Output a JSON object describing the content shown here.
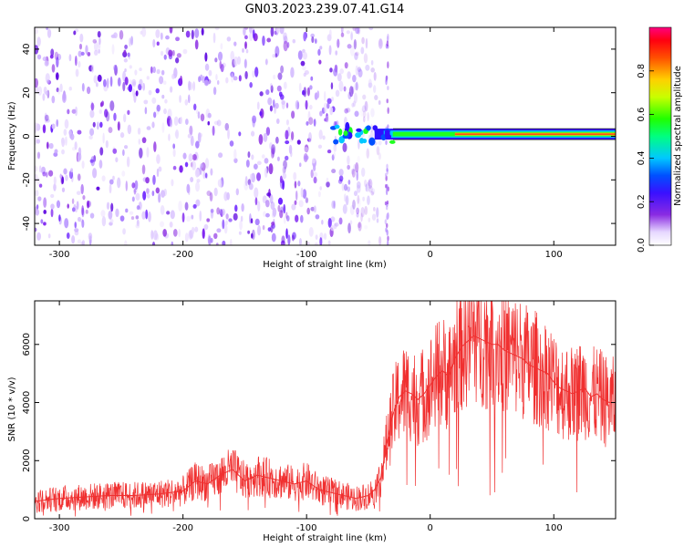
{
  "chart_data": [
    {
      "type": "heatmap",
      "title": "GN03.2023.239.07.41.G14",
      "xlabel": "Height of straight line (km)",
      "ylabel": "Frequency (Hz)",
      "xlim": [
        -320,
        150
      ],
      "ylim": [
        -50,
        50
      ],
      "xticks": [
        "-300",
        "-200",
        "-100",
        "0",
        "100"
      ],
      "xtick_values": [
        -300,
        -200,
        -100,
        0,
        100
      ],
      "yticks": [
        "-40",
        "-20",
        "0",
        "20",
        "40"
      ],
      "ytick_values": [
        -40,
        -20,
        0,
        20,
        40
      ],
      "colorbar": {
        "label": "Normalized spectral amplitude",
        "range": [
          0,
          1
        ],
        "ticks": [
          "0.0",
          "0.2",
          "0.4",
          "0.6",
          "0.8"
        ],
        "tick_values": [
          0.0,
          0.2,
          0.4,
          0.6,
          0.8
        ],
        "colormap": "rainbow (purple-blue-cyan-green-yellow-red-magenta)"
      },
      "description_points": {
        "noise_region_x": [
          -320,
          -40
        ],
        "signal_frequency_hz": 1,
        "signal_start_x": -45,
        "signal_end_x": 150
      },
      "grid": false
    },
    {
      "type": "line",
      "xlabel": "Height of straight line (km)",
      "ylabel": "SNR (10 * v/v)",
      "xlim": [
        -320,
        150
      ],
      "ylim": [
        0,
        7500
      ],
      "xticks": [
        "-300",
        "-200",
        "-100",
        "0",
        "100"
      ],
      "xtick_values": [
        -300,
        -200,
        -100,
        0,
        100
      ],
      "yticks": [
        "0",
        "2000",
        "4000",
        "6000"
      ],
      "ytick_values": [
        0,
        2000,
        4000,
        6000
      ],
      "color": "#f03030",
      "grid": false,
      "x": [
        -320,
        -300,
        -280,
        -260,
        -240,
        -220,
        -210,
        -200,
        -190,
        -180,
        -170,
        -160,
        -150,
        -140,
        -130,
        -120,
        -110,
        -100,
        -90,
        -80,
        -70,
        -60,
        -50,
        -45,
        -40,
        -35,
        -30,
        -25,
        -20,
        -15,
        -10,
        -5,
        0,
        5,
        10,
        15,
        20,
        25,
        30,
        35,
        40,
        45,
        50,
        55,
        60,
        65,
        70,
        75,
        80,
        85,
        90,
        95,
        100,
        105,
        110,
        115,
        120,
        125,
        130,
        135,
        140,
        145,
        150
      ],
      "values": [
        600,
        700,
        750,
        800,
        800,
        850,
        900,
        950,
        1300,
        1200,
        1500,
        1700,
        1300,
        1500,
        1400,
        1300,
        1200,
        1300,
        1000,
        900,
        800,
        700,
        800,
        1000,
        1400,
        2600,
        3600,
        4200,
        4400,
        4300,
        4100,
        4300,
        4600,
        4900,
        5100,
        4900,
        5500,
        5900,
        6100,
        6300,
        6200,
        6100,
        6000,
        6000,
        5800,
        5700,
        5600,
        5500,
        5300,
        5200,
        5100,
        5000,
        4700,
        4500,
        4400,
        4300,
        4400,
        4500,
        4200,
        4300,
        4100,
        4000,
        4000
      ]
    }
  ]
}
